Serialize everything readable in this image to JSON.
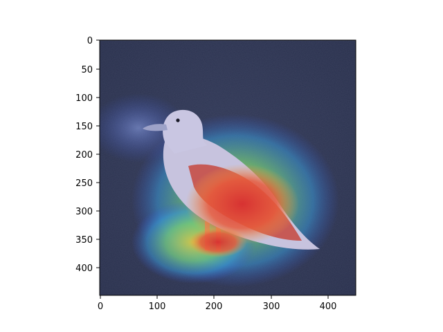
{
  "figure": {
    "description_type": "imshow heatmap overlay",
    "subject": "seagull-image",
    "colormap": "jet",
    "overlay_alpha": 0.5,
    "x_ticks": [
      "0",
      "100",
      "200",
      "300",
      "400"
    ],
    "y_ticks": [
      "0",
      "50",
      "100",
      "150",
      "200",
      "250",
      "300",
      "350",
      "400"
    ],
    "x_range": [
      0,
      448
    ],
    "y_range": [
      0,
      448
    ],
    "colors": {
      "background": "#2a2e3a",
      "gull_body": "#b9b7d6",
      "hot": "#e0403a",
      "warm": "#f5a040",
      "mid": "#7ad37a",
      "cool": "#3a58d8"
    }
  }
}
